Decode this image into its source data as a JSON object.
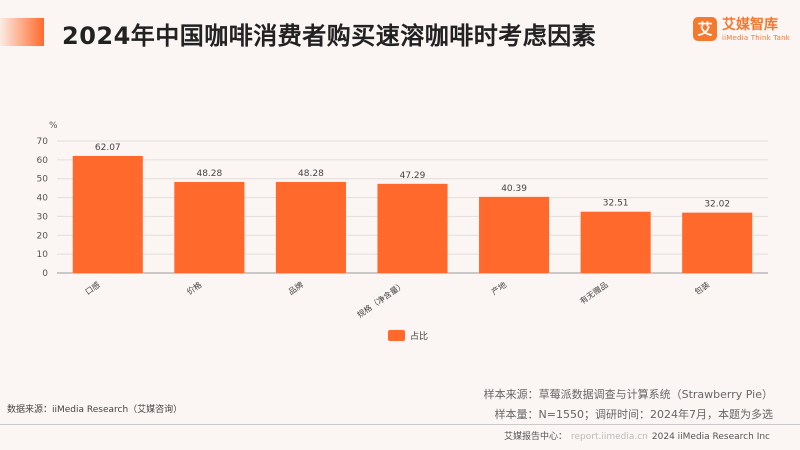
{
  "header": {
    "title": "2024年中国咖啡消费者购买速溶咖啡时考虑因素",
    "logo_mark": "艾",
    "logo_name": "艾媒智库",
    "logo_sub": "iiMedia Think Tank"
  },
  "chart_data": {
    "type": "bar",
    "title": "2024年中国咖啡消费者购买速溶咖啡时考虑因素",
    "unit": "%",
    "categories": [
      "口感",
      "价格",
      "品牌",
      "规格（净含量）",
      "产地",
      "有无赠品",
      "包装"
    ],
    "series": [
      {
        "name": "占比",
        "values": [
          62.07,
          48.28,
          48.28,
          47.29,
          40.39,
          32.51,
          32.02
        ],
        "color": "#ff6a2c"
      }
    ],
    "yticks": [
      "0",
      "10",
      "20",
      "30",
      "40",
      "50",
      "60",
      "70"
    ],
    "ylim": [
      0,
      70
    ],
    "grid": true,
    "legend": "bottom-center"
  },
  "footer": {
    "source_left": "数据来源：iiMedia Research（艾媒咨询）",
    "note_sample": "样本来源：草莓派数据调查与计算系统（Strawberry Pie）",
    "note_size": "样本量：N=1550；调研时间：2024年7月，本题为多选",
    "center_label": "艾媒报告中心：",
    "center_url": "report.iimedia.cn",
    "copyright": "2024 iiMedia Research Inc"
  }
}
